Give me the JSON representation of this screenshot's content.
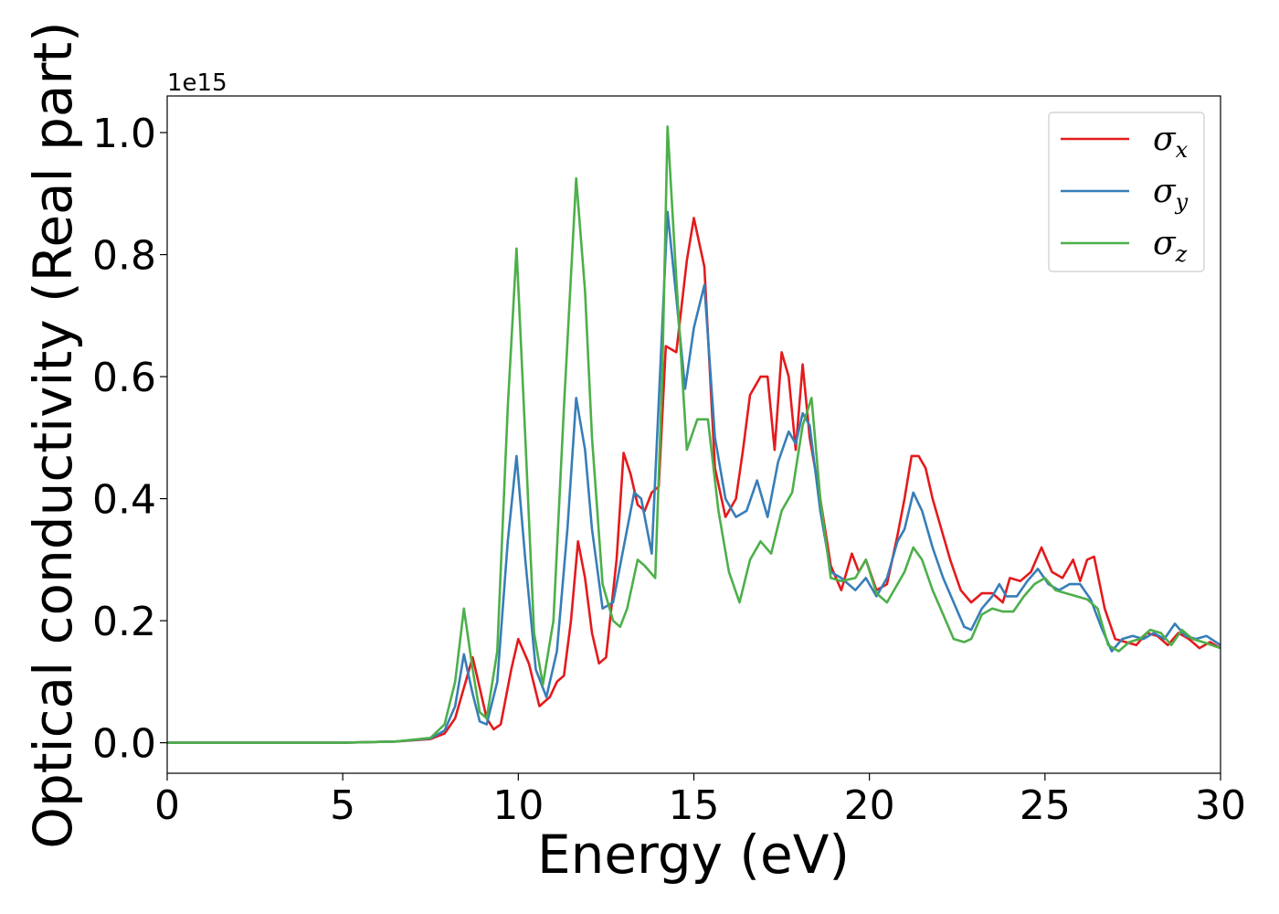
{
  "chart_data": {
    "type": "line",
    "title": "",
    "xlabel": "Energy (eV)",
    "ylabel": "Optical conductivity (Real part)",
    "y_offset_label": "1e15",
    "xlim": [
      0,
      30
    ],
    "ylim": [
      -0.05,
      1.06
    ],
    "x_ticks": [
      0,
      5,
      10,
      15,
      20,
      25,
      30
    ],
    "x_tick_labels": [
      "0",
      "5",
      "10",
      "15",
      "20",
      "25",
      "30"
    ],
    "y_ticks": [
      0.0,
      0.2,
      0.4,
      0.6,
      0.8,
      1.0
    ],
    "y_tick_labels": [
      "0.0",
      "0.2",
      "0.4",
      "0.6",
      "0.8",
      "1.0"
    ],
    "grid": false,
    "legend_position": "top-right",
    "series": [
      {
        "name": "σx",
        "label_main": "σ",
        "label_sub": "x",
        "color": "#e41a1c",
        "x": [
          0,
          5,
          6.5,
          7.5,
          7.9,
          8.2,
          8.5,
          8.7,
          8.9,
          9.1,
          9.3,
          9.5,
          9.8,
          10.0,
          10.3,
          10.6,
          10.9,
          11.1,
          11.3,
          11.5,
          11.7,
          11.9,
          12.1,
          12.3,
          12.5,
          12.8,
          13.0,
          13.2,
          13.4,
          13.6,
          13.8,
          14.0,
          14.2,
          14.5,
          14.8,
          15.0,
          15.3,
          15.6,
          15.9,
          16.2,
          16.4,
          16.6,
          16.9,
          17.1,
          17.3,
          17.5,
          17.7,
          17.9,
          18.1,
          18.3,
          18.6,
          18.9,
          19.2,
          19.5,
          19.7,
          19.9,
          20.2,
          20.5,
          20.8,
          21.0,
          21.2,
          21.4,
          21.6,
          21.8,
          22.0,
          22.3,
          22.6,
          22.9,
          23.2,
          23.5,
          23.8,
          24.0,
          24.3,
          24.6,
          24.9,
          25.2,
          25.5,
          25.8,
          26.0,
          26.2,
          26.4,
          26.7,
          27.0,
          27.3,
          27.6,
          27.9,
          28.2,
          28.5,
          28.8,
          29.1,
          29.4,
          29.7,
          30.0
        ],
        "y": [
          0.0,
          0.0,
          0.002,
          0.006,
          0.015,
          0.04,
          0.1,
          0.14,
          0.09,
          0.04,
          0.022,
          0.03,
          0.12,
          0.17,
          0.13,
          0.06,
          0.075,
          0.1,
          0.11,
          0.2,
          0.33,
          0.27,
          0.18,
          0.13,
          0.14,
          0.3,
          0.475,
          0.44,
          0.39,
          0.38,
          0.41,
          0.42,
          0.65,
          0.64,
          0.79,
          0.86,
          0.78,
          0.45,
          0.37,
          0.4,
          0.48,
          0.57,
          0.6,
          0.6,
          0.48,
          0.64,
          0.6,
          0.48,
          0.62,
          0.5,
          0.4,
          0.29,
          0.25,
          0.31,
          0.28,
          0.3,
          0.25,
          0.26,
          0.34,
          0.4,
          0.47,
          0.47,
          0.45,
          0.4,
          0.36,
          0.3,
          0.25,
          0.23,
          0.245,
          0.245,
          0.23,
          0.27,
          0.265,
          0.28,
          0.32,
          0.28,
          0.27,
          0.3,
          0.265,
          0.3,
          0.305,
          0.22,
          0.17,
          0.165,
          0.16,
          0.18,
          0.175,
          0.16,
          0.18,
          0.17,
          0.155,
          0.165,
          0.155
        ]
      },
      {
        "name": "σy",
        "label_main": "σ",
        "label_sub": "y",
        "color": "#377eb8",
        "x": [
          0,
          5,
          6.5,
          7.5,
          7.9,
          8.2,
          8.45,
          8.7,
          8.9,
          9.1,
          9.4,
          9.7,
          9.95,
          10.2,
          10.5,
          10.8,
          11.1,
          11.4,
          11.65,
          11.9,
          12.1,
          12.4,
          12.7,
          13.0,
          13.3,
          13.5,
          13.8,
          14.0,
          14.25,
          14.5,
          14.75,
          15.0,
          15.3,
          15.6,
          15.9,
          16.2,
          16.5,
          16.8,
          17.1,
          17.4,
          17.7,
          17.9,
          18.1,
          18.3,
          18.6,
          18.9,
          19.2,
          19.6,
          19.9,
          20.2,
          20.5,
          20.8,
          21.0,
          21.25,
          21.5,
          21.8,
          22.1,
          22.4,
          22.7,
          22.9,
          23.2,
          23.5,
          23.7,
          23.9,
          24.2,
          24.5,
          24.8,
          25.1,
          25.4,
          25.7,
          26.0,
          26.3,
          26.6,
          26.9,
          27.2,
          27.5,
          27.8,
          28.1,
          28.4,
          28.7,
          29.0,
          29.3,
          29.6,
          30.0
        ],
        "y": [
          0.0,
          0.0,
          0.002,
          0.007,
          0.02,
          0.06,
          0.145,
          0.08,
          0.035,
          0.03,
          0.1,
          0.33,
          0.47,
          0.3,
          0.12,
          0.075,
          0.15,
          0.35,
          0.565,
          0.48,
          0.35,
          0.22,
          0.23,
          0.32,
          0.41,
          0.4,
          0.31,
          0.56,
          0.87,
          0.73,
          0.58,
          0.68,
          0.75,
          0.5,
          0.4,
          0.37,
          0.38,
          0.43,
          0.37,
          0.46,
          0.51,
          0.49,
          0.54,
          0.52,
          0.38,
          0.28,
          0.27,
          0.25,
          0.27,
          0.24,
          0.27,
          0.33,
          0.35,
          0.41,
          0.38,
          0.32,
          0.27,
          0.23,
          0.19,
          0.185,
          0.22,
          0.24,
          0.26,
          0.24,
          0.24,
          0.265,
          0.285,
          0.26,
          0.25,
          0.26,
          0.26,
          0.235,
          0.19,
          0.15,
          0.17,
          0.175,
          0.17,
          0.18,
          0.17,
          0.195,
          0.175,
          0.17,
          0.175,
          0.16
        ]
      },
      {
        "name": "σz",
        "label_main": "σ",
        "label_sub": "z",
        "color": "#4daf4a",
        "x": [
          0,
          5,
          6.5,
          7.5,
          7.9,
          8.2,
          8.45,
          8.7,
          8.9,
          9.1,
          9.4,
          9.7,
          9.95,
          10.2,
          10.45,
          10.7,
          11.0,
          11.3,
          11.65,
          11.9,
          12.1,
          12.4,
          12.7,
          12.9,
          13.1,
          13.4,
          13.6,
          13.9,
          14.1,
          14.25,
          14.5,
          14.8,
          15.1,
          15.4,
          15.7,
          16.0,
          16.3,
          16.6,
          16.9,
          17.2,
          17.5,
          17.8,
          18.1,
          18.35,
          18.6,
          18.9,
          19.2,
          19.6,
          19.9,
          20.2,
          20.5,
          20.8,
          21.0,
          21.25,
          21.5,
          21.8,
          22.1,
          22.4,
          22.7,
          22.9,
          23.2,
          23.5,
          23.8,
          24.1,
          24.4,
          24.7,
          25.0,
          25.3,
          25.6,
          25.9,
          26.2,
          26.5,
          26.8,
          27.1,
          27.4,
          27.7,
          28.0,
          28.3,
          28.6,
          28.9,
          29.2,
          29.5,
          30.0
        ],
        "y": [
          0.0,
          0.0,
          0.002,
          0.008,
          0.03,
          0.1,
          0.22,
          0.12,
          0.05,
          0.04,
          0.15,
          0.55,
          0.81,
          0.5,
          0.18,
          0.095,
          0.2,
          0.55,
          0.925,
          0.74,
          0.5,
          0.26,
          0.2,
          0.19,
          0.22,
          0.3,
          0.29,
          0.27,
          0.6,
          1.01,
          0.76,
          0.48,
          0.53,
          0.53,
          0.38,
          0.28,
          0.23,
          0.3,
          0.33,
          0.31,
          0.38,
          0.41,
          0.52,
          0.565,
          0.4,
          0.27,
          0.265,
          0.27,
          0.3,
          0.245,
          0.23,
          0.26,
          0.28,
          0.32,
          0.3,
          0.25,
          0.21,
          0.17,
          0.165,
          0.17,
          0.21,
          0.22,
          0.215,
          0.215,
          0.24,
          0.26,
          0.27,
          0.25,
          0.245,
          0.24,
          0.235,
          0.22,
          0.16,
          0.15,
          0.165,
          0.17,
          0.185,
          0.18,
          0.16,
          0.185,
          0.17,
          0.165,
          0.155
        ]
      }
    ]
  }
}
